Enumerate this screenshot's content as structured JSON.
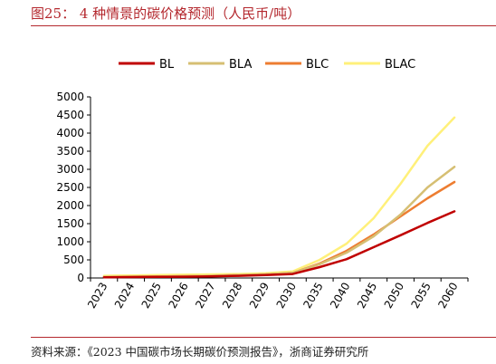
{
  "figure": {
    "title": "图25： 4 种情景的碳价格预测（人民币/吨）",
    "source": "资料来源：《2023 中国碳市场长期碳价预测报告》，浙商证券研究所"
  },
  "chart_data": {
    "type": "line",
    "title": "",
    "xlabel": "",
    "ylabel": "",
    "categories": [
      "2023",
      "2024",
      "2025",
      "2026",
      "2027",
      "2028",
      "2029",
      "2030",
      "2035",
      "2040",
      "2045",
      "2050",
      "2055",
      "2060"
    ],
    "ylim": [
      0,
      5000
    ],
    "yticks": [
      "0",
      "500",
      "1000",
      "1500",
      "2000",
      "2500",
      "3000",
      "3500",
      "4000",
      "4500",
      "5000"
    ],
    "grid": false,
    "legend": "top",
    "series": [
      {
        "name": "BL",
        "color": "#c00000",
        "values": [
          20,
          25,
          30,
          35,
          45,
          60,
          80,
          110,
          300,
          520,
          850,
          1180,
          1520,
          1840
        ]
      },
      {
        "name": "BLA",
        "color": "#d6bf73",
        "values": [
          30,
          35,
          40,
          50,
          60,
          80,
          100,
          140,
          380,
          700,
          1150,
          1750,
          2500,
          3070
        ]
      },
      {
        "name": "BLC",
        "color": "#ed7d31",
        "values": [
          30,
          35,
          40,
          50,
          60,
          80,
          100,
          140,
          400,
          750,
          1200,
          1700,
          2200,
          2650
        ]
      },
      {
        "name": "BLAC",
        "color": "#fff07a",
        "values": [
          60,
          70,
          80,
          90,
          100,
          110,
          130,
          180,
          500,
          950,
          1650,
          2600,
          3650,
          4430
        ]
      }
    ]
  }
}
